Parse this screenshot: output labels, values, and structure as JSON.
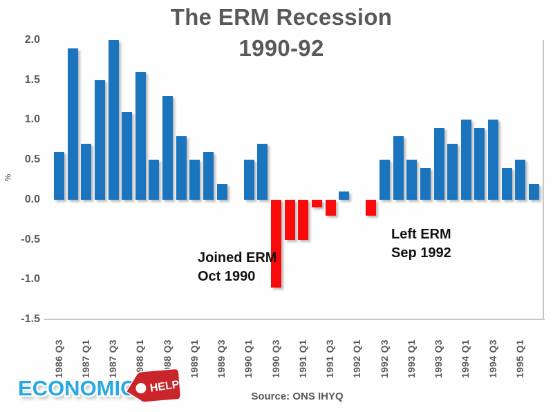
{
  "title": {
    "line1": "The ERM Recession",
    "line2": "1990-92"
  },
  "annotations": {
    "joined": {
      "line1": "Joined ERM",
      "line2": "Oct 1990"
    },
    "left": {
      "line1": "Left ERM",
      "line2": "Sep 1992"
    }
  },
  "source": "Source: ONS IHYQ",
  "logo": {
    "economics": "ECONOMICS",
    "help": "HELP"
  },
  "colors": {
    "positive_bar": "#1B74BE",
    "negative_bar": "#FA0A0A",
    "title_gray": "#595959",
    "axis_gray": "#595959",
    "annotation_black": "#121212",
    "logo_blue": "#2AA9E1",
    "tag_red": "#C9252B"
  },
  "chart_data": {
    "type": "bar",
    "title": "The ERM Recession 1990-92",
    "xlabel": "",
    "ylabel": "%",
    "ylim": [
      -1.5,
      2.0
    ],
    "yticks": [
      2.0,
      1.5,
      1.0,
      0.5,
      0.0,
      -0.5,
      -1.0,
      -1.5
    ],
    "grid": false,
    "legend": false,
    "x_label_every": 2,
    "categories": [
      "1986 Q3",
      "1986 Q4",
      "1987 Q1",
      "1987 Q2",
      "1987 Q3",
      "1987 Q4",
      "1988 Q1",
      "1988 Q2",
      "1988 Q3",
      "1988 Q4",
      "1989 Q1",
      "1989 Q2",
      "1989 Q3",
      "1989 Q4",
      "1990 Q1",
      "1990 Q2",
      "1990 Q3",
      "1990 Q4",
      "1991 Q1",
      "1991 Q2",
      "1991 Q3",
      "1991 Q4",
      "1992 Q1",
      "1992 Q2",
      "1992 Q3",
      "1992 Q4",
      "1993 Q1",
      "1993 Q2",
      "1993 Q3",
      "1993 Q4",
      "1994 Q1",
      "1994 Q2",
      "1994 Q3",
      "1994 Q4",
      "1995 Q1",
      "1995 Q2"
    ],
    "values": [
      0.6,
      1.9,
      0.7,
      1.5,
      2.0,
      1.1,
      1.6,
      0.5,
      1.3,
      0.8,
      0.5,
      0.6,
      0.2,
      0.0,
      0.5,
      0.7,
      -1.1,
      -0.5,
      -0.5,
      -0.1,
      -0.2,
      0.1,
      0.0,
      -0.2,
      0.5,
      0.8,
      0.5,
      0.4,
      0.9,
      0.7,
      1.0,
      0.9,
      1.0,
      0.4,
      0.5,
      0.2
    ],
    "color_rule": "positive bars blue, negative bars red"
  }
}
